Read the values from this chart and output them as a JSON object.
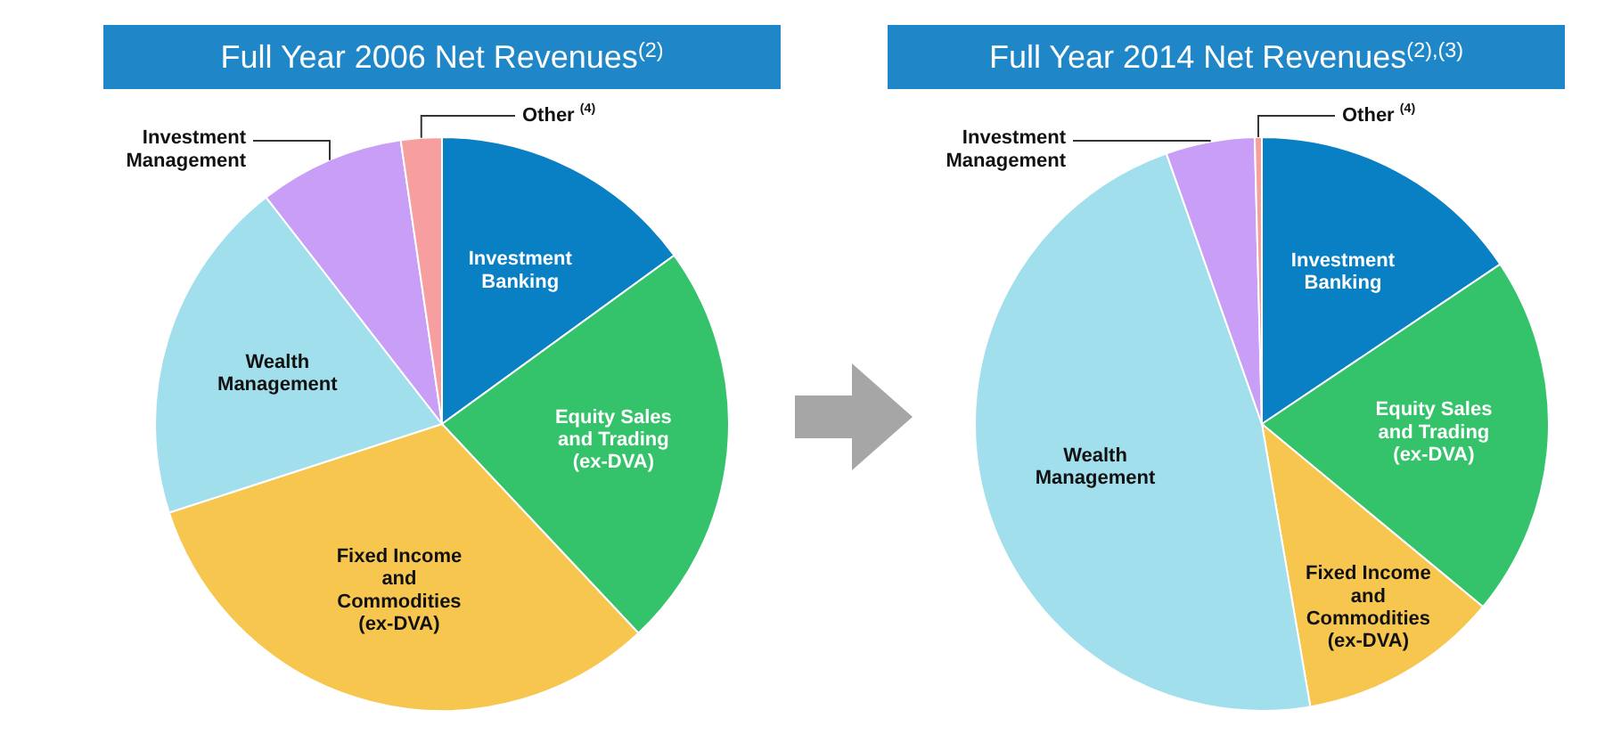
{
  "chart_data": [
    {
      "type": "pie",
      "title": "Full Year 2006 Net Revenues$^{(2)}$",
      "categories": [
        "Investment\nBanking",
        "Equity Sales\nand Trading\n(ex-DVA)",
        "Fixed Income\nand\nCommodities\n(ex-DVA)",
        "Wealth\nManagement",
        "Investment\nManagement",
        "Other $^{(4)}$"
      ],
      "values": [
        15,
        23,
        32,
        19.5,
        8.2,
        2.3
      ],
      "colors": [
        "#0a80c4",
        "#34c26a",
        "#f6c64f",
        "#a2dfed",
        "#c99ef7",
        "#f79fa0"
      ]
    },
    {
      "type": "pie",
      "title": "Full Year 2014 Net Revenues$^{(2),(3)}$",
      "categories": [
        "Investment\nBanking",
        "Equity Sales\nand Trading\n(ex-DVA)",
        "Fixed Income\nand\nCommodities\n(ex-DVA)",
        "Wealth\nManagement",
        "Investment\nManagement",
        "Other $^{(4)}$"
      ],
      "values": [
        15.6,
        20.4,
        11.3,
        47.3,
        5,
        0.4
      ],
      "colors": [
        "#0a80c4",
        "#34c26a",
        "#f6c64f",
        "#a2dfed",
        "#c99ef7",
        "#f79fa0"
      ]
    }
  ]
}
